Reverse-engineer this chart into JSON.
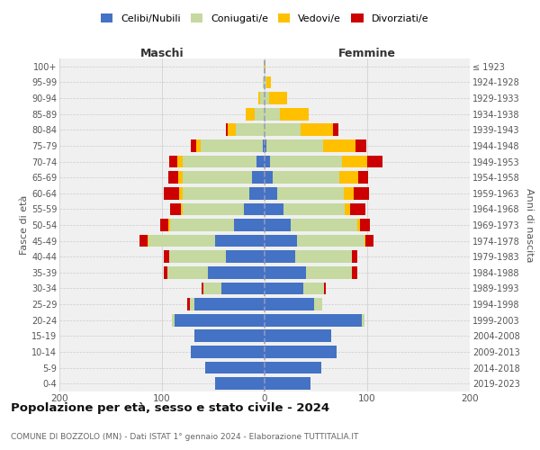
{
  "age_groups": [
    "0-4",
    "5-9",
    "10-14",
    "15-19",
    "20-24",
    "25-29",
    "30-34",
    "35-39",
    "40-44",
    "45-49",
    "50-54",
    "55-59",
    "60-64",
    "65-69",
    "70-74",
    "75-79",
    "80-84",
    "85-89",
    "90-94",
    "95-99",
    "100+"
  ],
  "birth_years": [
    "2019-2023",
    "2014-2018",
    "2009-2013",
    "2004-2008",
    "1999-2003",
    "1994-1998",
    "1989-1993",
    "1984-1988",
    "1979-1983",
    "1974-1978",
    "1969-1973",
    "1964-1968",
    "1959-1963",
    "1954-1958",
    "1949-1953",
    "1944-1948",
    "1939-1943",
    "1934-1938",
    "1929-1933",
    "1924-1928",
    "≤ 1923"
  ],
  "male": {
    "celibi": [
      48,
      58,
      72,
      68,
      88,
      68,
      42,
      55,
      38,
      48,
      30,
      20,
      15,
      12,
      8,
      2,
      0,
      0,
      0,
      0,
      0
    ],
    "coniugati": [
      0,
      0,
      0,
      0,
      2,
      5,
      18,
      40,
      55,
      65,
      62,
      60,
      65,
      68,
      72,
      60,
      28,
      10,
      4,
      2,
      1
    ],
    "vedovi": [
      0,
      0,
      0,
      0,
      0,
      0,
      0,
      0,
      0,
      1,
      2,
      2,
      3,
      4,
      5,
      5,
      8,
      8,
      2,
      0,
      0
    ],
    "divorziati": [
      0,
      0,
      0,
      0,
      0,
      2,
      1,
      3,
      5,
      8,
      8,
      10,
      15,
      10,
      8,
      5,
      2,
      0,
      0,
      0,
      0
    ]
  },
  "female": {
    "nubili": [
      45,
      55,
      70,
      65,
      95,
      48,
      38,
      40,
      30,
      32,
      25,
      18,
      12,
      8,
      5,
      2,
      0,
      0,
      0,
      0,
      0
    ],
    "coniugate": [
      0,
      0,
      0,
      0,
      2,
      8,
      20,
      45,
      55,
      65,
      65,
      60,
      65,
      65,
      70,
      55,
      35,
      15,
      4,
      2,
      0
    ],
    "vedove": [
      0,
      0,
      0,
      0,
      0,
      0,
      0,
      0,
      0,
      1,
      3,
      5,
      10,
      18,
      25,
      32,
      32,
      28,
      18,
      4,
      1
    ],
    "divorziate": [
      0,
      0,
      0,
      0,
      0,
      0,
      2,
      5,
      5,
      8,
      10,
      15,
      15,
      10,
      15,
      10,
      5,
      0,
      0,
      0,
      0
    ]
  },
  "colors": {
    "celibi_nubili": "#4472c4",
    "coniugati": "#c5d9a0",
    "vedovi": "#ffc000",
    "divorziati": "#cc0000"
  },
  "xlim": 200,
  "title": "Popolazione per età, sesso e stato civile - 2024",
  "subtitle": "COMUNE DI BOZZOLO (MN) - Dati ISTAT 1° gennaio 2024 - Elaborazione TUTTITALIA.IT",
  "ylabel_left": "Fasce di età",
  "ylabel_right": "Anni di nascita",
  "xlabel_left": "Maschi",
  "xlabel_right": "Femmine",
  "legend_labels": [
    "Celibi/Nubili",
    "Coniugati/e",
    "Vedovi/e",
    "Divorziati/e"
  ],
  "background_color": "#ffffff",
  "plot_bg_color": "#f0f0f0",
  "grid_color": "#cccccc",
  "center_line_color": "#9999bb"
}
